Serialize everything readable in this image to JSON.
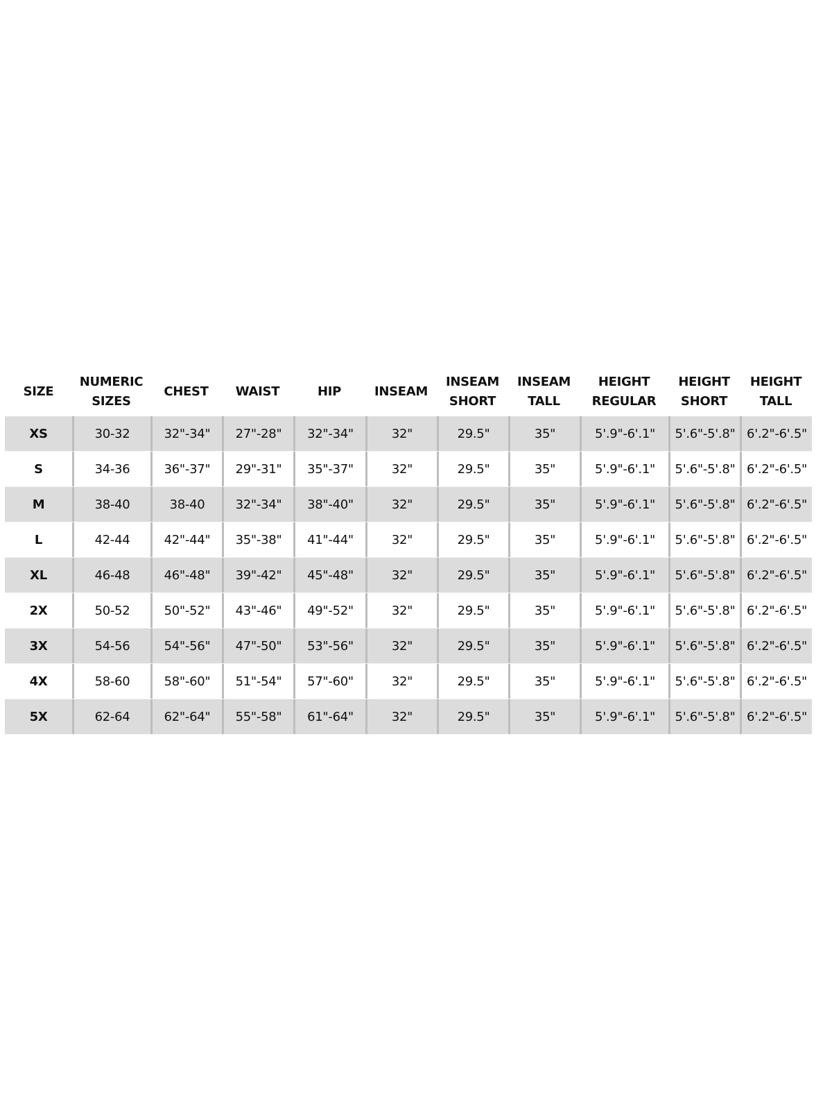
{
  "size_chart": {
    "headers": [
      "SIZE",
      "NUMERIC\nSIZES",
      "CHEST",
      "WAIST",
      "HIP",
      "INSEAM",
      "INSEAM\nSHORT",
      "INSEAM\nTALL",
      "HEIGHT\nREGULAR",
      "HEIGHT\nSHORT",
      "HEIGHT\nTALL"
    ],
    "rows": [
      [
        "XS",
        "30-32",
        "32\"-34\"",
        "27\"-28\"",
        "32\"-34\"",
        "32\"",
        "29.5\"",
        "35\"",
        "5'.9\"-6'.1\"",
        "5'.6\"-5'.8\"",
        "6'.2\"-6'.5\""
      ],
      [
        "S",
        "34-36",
        "36\"-37\"",
        "29\"-31\"",
        "35\"-37\"",
        "32\"",
        "29.5\"",
        "35\"",
        "5'.9\"-6'.1\"",
        "5'.6\"-5'.8\"",
        "6'.2\"-6'.5\""
      ],
      [
        "M",
        "38-40",
        "38-40",
        "32\"-34\"",
        "38\"-40\"",
        "32\"",
        "29.5\"",
        "35\"",
        "5'.9\"-6'.1\"",
        "5'.6\"-5'.8\"",
        "6'.2\"-6'.5\""
      ],
      [
        "L",
        "42-44",
        "42\"-44\"",
        "35\"-38\"",
        "41\"-44\"",
        "32\"",
        "29.5\"",
        "35\"",
        "5'.9\"-6'.1\"",
        "5'.6\"-5'.8\"",
        "6'.2\"-6'.5\""
      ],
      [
        "XL",
        "46-48",
        "46\"-48\"",
        "39\"-42\"",
        "45\"-48\"",
        "32\"",
        "29.5\"",
        "35\"",
        "5'.9\"-6'.1\"",
        "5'.6\"-5'.8\"",
        "6'.2\"-6'.5\""
      ],
      [
        "2X",
        "50-52",
        "50\"-52\"",
        "43\"-46\"",
        "49\"-52\"",
        "32\"",
        "29.5\"",
        "35\"",
        "5'.9\"-6'.1\"",
        "5'.6\"-5'.8\"",
        "6'.2\"-6'.5\""
      ],
      [
        "3X",
        "54-56",
        "54\"-56\"",
        "47\"-50\"",
        "53\"-56\"",
        "32\"",
        "29.5\"",
        "35\"",
        "5'.9\"-6'.1\"",
        "5'.6\"-5'.8\"",
        "6'.2\"-6'.5\""
      ],
      [
        "4X",
        "58-60",
        "58\"-60\"",
        "51\"-54\"",
        "57\"-60\"",
        "32\"",
        "29.5\"",
        "35\"",
        "5'.9\"-6'.1\"",
        "5'.6\"-5'.8\"",
        "6'.2\"-6'.5\""
      ],
      [
        "5X",
        "62-64",
        "62\"-64\"",
        "55\"-58\"",
        "61\"-64\"",
        "32\"",
        "29.5\"",
        "35\"",
        "5'.9\"-6'.1\"",
        "5'.6\"-5'.8\"",
        "6'.2\"-6'.5\""
      ]
    ],
    "colors": {
      "shaded_row": "#dcdcdc",
      "divider": "#bdbdbd",
      "text": "#111111"
    }
  }
}
